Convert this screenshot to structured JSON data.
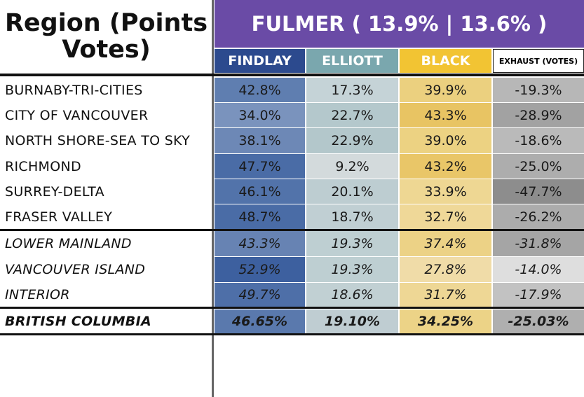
{
  "title": "Region (Points Votes)",
  "banner": "FULMER ( 13.9% | 13.6% )",
  "columns": [
    {
      "label": "FINDLAY",
      "color": "#2c4a8e",
      "text": "#ffffff"
    },
    {
      "label": "ELLIOTT",
      "color": "#7aa7ae",
      "text": "#ffffff"
    },
    {
      "label": "BLACK",
      "color": "#f2c433",
      "text": "#ffffff"
    },
    {
      "label": "EXHAUST (VOTES)",
      "color": "#ffffff",
      "text": "#000000"
    }
  ],
  "chart_data": {
    "type": "table",
    "title": "Region (Points Votes)",
    "columns": [
      "FINDLAY",
      "ELLIOTT",
      "BLACK",
      "EXHAUST (VOTES)"
    ],
    "rows": [
      {
        "region": "BURNABY-TRI-CITIES",
        "style": "normal",
        "values": [
          "42.8%",
          "17.3%",
          "39.9%",
          "-19.3%"
        ]
      },
      {
        "region": "CITY OF VANCOUVER",
        "style": "normal",
        "values": [
          "34.0%",
          "22.7%",
          "43.3%",
          "-28.9%"
        ]
      },
      {
        "region": "NORTH SHORE-SEA TO SKY",
        "style": "normal",
        "values": [
          "38.1%",
          "22.9%",
          "39.0%",
          "-18.6%"
        ]
      },
      {
        "region": "RICHMOND",
        "style": "normal",
        "values": [
          "47.7%",
          "9.2%",
          "43.2%",
          "-25.0%"
        ]
      },
      {
        "region": "SURREY-DELTA",
        "style": "normal",
        "values": [
          "46.1%",
          "20.1%",
          "33.9%",
          "-47.7%"
        ]
      },
      {
        "region": "FRASER VALLEY",
        "style": "normal",
        "values": [
          "48.7%",
          "18.7%",
          "32.7%",
          "-26.2%"
        ]
      },
      {
        "region": "LOWER MAINLAND",
        "style": "italic",
        "values": [
          "43.3%",
          "19.3%",
          "37.4%",
          "-31.8%"
        ]
      },
      {
        "region": "VANCOUVER ISLAND",
        "style": "italic",
        "values": [
          "52.9%",
          "19.3%",
          "27.8%",
          "-14.0%"
        ]
      },
      {
        "region": "INTERIOR",
        "style": "italic",
        "values": [
          "49.7%",
          "18.6%",
          "31.7%",
          "-17.9%"
        ]
      },
      {
        "region": "BRITISH COLUMBIA",
        "style": "bold-italic",
        "values": [
          "46.65%",
          "19.10%",
          "34.25%",
          "-25.03%"
        ]
      }
    ],
    "cell_colors": [
      [
        "#5f7eb0",
        "#c5d3d7",
        "#ebd07f",
        "#b7b7b7"
      ],
      [
        "#7a93bd",
        "#b4c8cc",
        "#e8c463",
        "#a2a2a2"
      ],
      [
        "#6d88b6",
        "#b3c7cb",
        "#ecd282",
        "#bababa"
      ],
      [
        "#4a6ca6",
        "#d3dadc",
        "#e9c668",
        "#adadad"
      ],
      [
        "#5273aa",
        "#bdcdd1",
        "#eed793",
        "#8d8d8d"
      ],
      [
        "#4a6ca6",
        "#c0cfd3",
        "#efd898",
        "#acacac"
      ],
      [
        "#6783b3",
        "#becfd2",
        "#ecd286",
        "#a5a5a5"
      ],
      [
        "#3d609f",
        "#becfd2",
        "#f0dca8",
        "#dedede"
      ],
      [
        "#4e6fa8",
        "#c1d0d3",
        "#eed795",
        "#c2c2c2"
      ],
      [
        "#5a79ad",
        "#bfcdd2",
        "#ecd387",
        "#afafaf"
      ]
    ]
  }
}
